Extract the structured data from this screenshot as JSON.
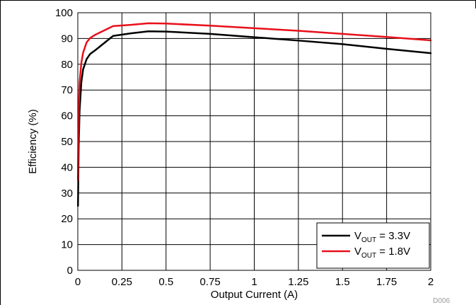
{
  "chart_data": {
    "type": "line",
    "title": "",
    "xlabel": "Output Current (A)",
    "ylabel": "Efficiency (%)",
    "xlim": [
      0,
      2
    ],
    "ylim": [
      0,
      100
    ],
    "xticks": [
      0,
      0.25,
      0.5,
      0.75,
      1,
      1.25,
      1.5,
      1.75,
      2
    ],
    "xtick_labels": [
      "0",
      "0.25",
      "0.5",
      "0.75",
      "1",
      "1.25",
      "1.5",
      "1.75",
      "2"
    ],
    "yticks": [
      0,
      10,
      20,
      30,
      40,
      50,
      60,
      70,
      80,
      90,
      100
    ],
    "ytick_labels": [
      "0",
      "10",
      "20",
      "30",
      "40",
      "50",
      "60",
      "70",
      "80",
      "90",
      "100"
    ],
    "grid": true,
    "legend_position": "bottom-right",
    "series": [
      {
        "name": "VOUT = 3.3V",
        "legend_parts": {
          "main": "V",
          "sub": "OUT",
          "rest": " = 3.3V"
        },
        "color": "#000000",
        "x": [
          0.001,
          0.005,
          0.01,
          0.02,
          0.03,
          0.05,
          0.07,
          0.1,
          0.2,
          0.3,
          0.4,
          0.5,
          0.75,
          1.0,
          1.25,
          1.5,
          1.75,
          2.0
        ],
        "y": [
          25,
          48,
          62,
          73,
          78,
          82,
          84,
          85.5,
          91,
          92,
          92.8,
          92.7,
          91.8,
          90.5,
          89.2,
          87.8,
          86,
          84.3
        ]
      },
      {
        "name": "VOUT = 1.8V",
        "legend_parts": {
          "main": "V",
          "sub": "OUT",
          "rest": " = 1.8V"
        },
        "color": "#e8101a",
        "x": [
          0.001,
          0.005,
          0.01,
          0.02,
          0.03,
          0.05,
          0.07,
          0.1,
          0.2,
          0.3,
          0.4,
          0.5,
          0.75,
          1.0,
          1.25,
          1.5,
          1.75,
          2.0
        ],
        "y": [
          35,
          62,
          73,
          80.5,
          84.5,
          88.5,
          90.2,
          91.5,
          94.8,
          95.3,
          95.9,
          95.8,
          95,
          94,
          93,
          91.8,
          90.6,
          89.3
        ]
      }
    ]
  },
  "figure_code": "D006"
}
